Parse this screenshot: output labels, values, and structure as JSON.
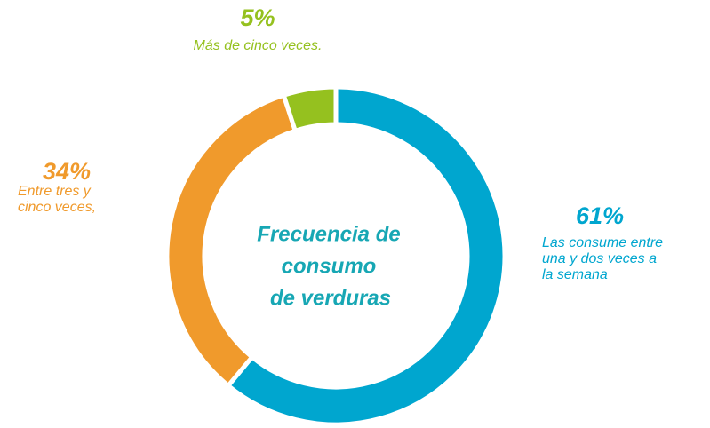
{
  "chart_data": {
    "type": "donut",
    "title": [
      "Frecuencia de",
      "consumo",
      "de verduras"
    ],
    "title_color": "#17a7b4",
    "categories": [
      [
        "Las consume entre",
        "una y dos veces a",
        "la semana"
      ],
      [
        "Entre tres y",
        "cinco veces,"
      ],
      [
        "Más de cinco veces."
      ]
    ],
    "values": [
      61,
      34,
      5
    ],
    "value_labels": [
      "61%",
      "34%",
      "5%"
    ],
    "colors": [
      "#00a6cf",
      "#f09a2c",
      "#95c11f"
    ]
  }
}
